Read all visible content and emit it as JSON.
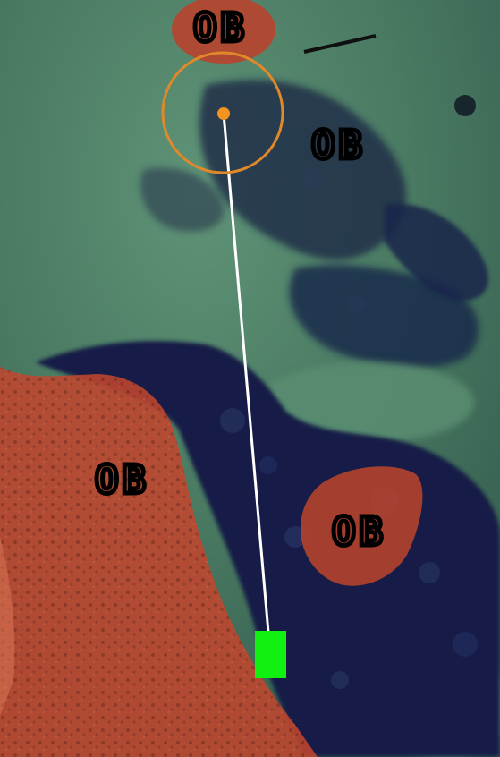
{
  "map": {
    "hazard_label": "OB",
    "ob_zones": [
      {
        "name": "ob-zone-top",
        "label": "OB"
      },
      {
        "name": "ob-zone-upper-right",
        "label": "OB"
      },
      {
        "name": "ob-zone-lower-left",
        "label": "OB"
      },
      {
        "name": "ob-zone-lower-right",
        "label": "OB"
      }
    ],
    "colors": {
      "ob_fill": "#c8452e",
      "fairway": "#4e7f63",
      "trees": "#16244d",
      "target_circle": "#e0892a",
      "tee_marker": "#11f111",
      "shot_line": "#ffffff"
    }
  }
}
